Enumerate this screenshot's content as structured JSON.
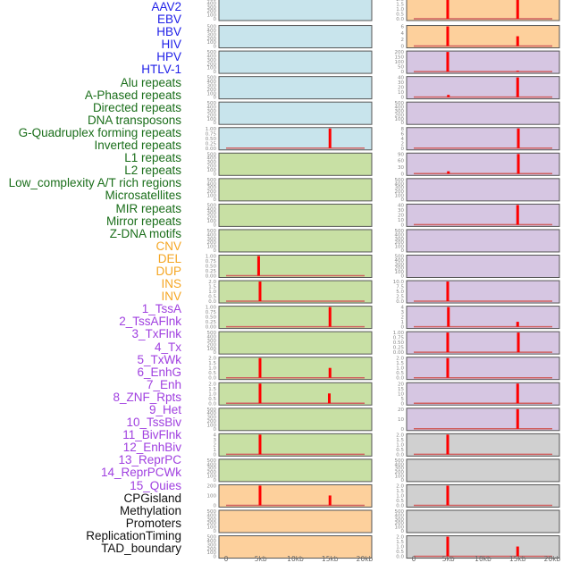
{
  "chart_data": {
    "type": "bar",
    "title": "",
    "xlabel": "",
    "x_ticks": [
      "0",
      "5kb",
      "10kb",
      "15kb",
      "20kb"
    ],
    "x_range_kb": [
      0,
      20
    ],
    "labels": [
      {
        "text": "AAV2",
        "color": "#2020e8"
      },
      {
        "text": "EBV",
        "color": "#2020e8"
      },
      {
        "text": "HBV",
        "color": "#2020e8"
      },
      {
        "text": "HIV",
        "color": "#2020e8"
      },
      {
        "text": "HPV",
        "color": "#2020e8"
      },
      {
        "text": "HTLV-1",
        "color": "#2020e8"
      },
      {
        "text": "Alu repeats",
        "color": "#1a6e1a"
      },
      {
        "text": "A-Phased repeats",
        "color": "#1a6e1a"
      },
      {
        "text": "Directed repeats",
        "color": "#1a6e1a"
      },
      {
        "text": "DNA transposons",
        "color": "#1a6e1a"
      },
      {
        "text": "G-Quadruplex forming repeats",
        "color": "#1a6e1a"
      },
      {
        "text": "Inverted repeats",
        "color": "#1a6e1a"
      },
      {
        "text": "L1 repeats",
        "color": "#1a6e1a"
      },
      {
        "text": "L2 repeats",
        "color": "#1a6e1a"
      },
      {
        "text": "Low_complexity A/T rich regions",
        "color": "#1a6e1a"
      },
      {
        "text": "Microsatellites",
        "color": "#1a6e1a"
      },
      {
        "text": "MIR repeats",
        "color": "#1a6e1a"
      },
      {
        "text": "Mirror repeats",
        "color": "#1a6e1a"
      },
      {
        "text": "Z-DNA motifs",
        "color": "#1a6e1a"
      },
      {
        "text": "CNV",
        "color": "#f5a623"
      },
      {
        "text": "DEL",
        "color": "#f5a623"
      },
      {
        "text": "DUP",
        "color": "#f5a623"
      },
      {
        "text": "INS",
        "color": "#f5a623"
      },
      {
        "text": "INV",
        "color": "#f5a623"
      },
      {
        "text": "1_TssA",
        "color": "#a040e0"
      },
      {
        "text": "2_TssAFlnk",
        "color": "#a040e0"
      },
      {
        "text": "3_TxFlnk",
        "color": "#a040e0"
      },
      {
        "text": "4_Tx",
        "color": "#a040e0"
      },
      {
        "text": "5_TxWk",
        "color": "#a040e0"
      },
      {
        "text": "6_EnhG",
        "color": "#a040e0"
      },
      {
        "text": "7_Enh",
        "color": "#a040e0"
      },
      {
        "text": "8_ZNF_Rpts",
        "color": "#a040e0"
      },
      {
        "text": "9_Het",
        "color": "#a040e0"
      },
      {
        "text": "10_TssBiv",
        "color": "#a040e0"
      },
      {
        "text": "11_BivFlnk",
        "color": "#a040e0"
      },
      {
        "text": "12_EnhBiv",
        "color": "#a040e0"
      },
      {
        "text": "13_ReprPC",
        "color": "#a040e0"
      },
      {
        "text": "14_ReprPCWk",
        "color": "#a040e0"
      },
      {
        "text": "15_Quies",
        "color": "#a040e0"
      },
      {
        "text": "CPGisland",
        "color": "#111111"
      },
      {
        "text": "Methylation",
        "color": "#111111"
      },
      {
        "text": "Promoters",
        "color": "#111111"
      },
      {
        "text": "ReplicationTiming",
        "color": "#111111"
      },
      {
        "text": "TAD_boundary",
        "color": "#111111"
      }
    ],
    "colors": {
      "virus_bg": "#c8e4ec",
      "repeat_bg": "#c8e0a4",
      "sv_bg": "#fdd09c",
      "chromhmm_bg": "#d6c6e2",
      "other_bg": "#d0d0d0",
      "bar": "#ff0000",
      "baseline": "#d06060"
    },
    "left_panels": [
      {
        "bg": "virus_bg",
        "yticks": [
          "0",
          "100",
          "200",
          "300",
          "400",
          "500"
        ],
        "ymax": 500,
        "bars": []
      },
      {
        "bg": "virus_bg",
        "yticks": [
          "0",
          "100",
          "200",
          "300",
          "400",
          "500"
        ],
        "ymax": 500,
        "bars": []
      },
      {
        "bg": "virus_bg",
        "yticks": [
          "0",
          "100",
          "200",
          "300",
          "400",
          "500"
        ],
        "ymax": 500,
        "bars": []
      },
      {
        "bg": "virus_bg",
        "yticks": [
          "0",
          "100",
          "200",
          "300",
          "400",
          "500"
        ],
        "ymax": 500,
        "bars": []
      },
      {
        "bg": "virus_bg",
        "yticks": [
          "0",
          "100",
          "200",
          "300",
          "400",
          "500"
        ],
        "ymax": 500,
        "bars": []
      },
      {
        "bg": "virus_bg",
        "yticks": [
          "0.00",
          "0.25",
          "0.50",
          "0.75",
          "1.00"
        ],
        "ymax": 1,
        "bars": [
          {
            "x": 15.0,
            "value": 1
          }
        ]
      },
      {
        "bg": "repeat_bg",
        "yticks": [
          "0",
          "100",
          "200",
          "300",
          "400",
          "500"
        ],
        "ymax": 500,
        "bars": []
      },
      {
        "bg": "repeat_bg",
        "yticks": [
          "0",
          "100",
          "200",
          "300",
          "400",
          "500"
        ],
        "ymax": 500,
        "bars": []
      },
      {
        "bg": "repeat_bg",
        "yticks": [
          "0",
          "100",
          "200",
          "300",
          "400",
          "500"
        ],
        "ymax": 500,
        "bars": []
      },
      {
        "bg": "repeat_bg",
        "yticks": [
          "0",
          "100",
          "200",
          "300",
          "400",
          "500"
        ],
        "ymax": 500,
        "bars": []
      },
      {
        "bg": "repeat_bg",
        "yticks": [
          "0.00",
          "0.25",
          "0.50",
          "0.75",
          "1.00"
        ],
        "ymax": 1,
        "bars": [
          {
            "x": 4.7,
            "value": 1
          }
        ]
      },
      {
        "bg": "repeat_bg",
        "yticks": [
          "0.0",
          "0.5",
          "1.0",
          "1.5",
          "2.0"
        ],
        "ymax": 2,
        "bars": [
          {
            "x": 4.9,
            "value": 2
          }
        ]
      },
      {
        "bg": "repeat_bg",
        "yticks": [
          "0.00",
          "0.25",
          "0.50",
          "0.75",
          "1.00"
        ],
        "ymax": 1,
        "bars": [
          {
            "x": 15.0,
            "value": 1
          }
        ]
      },
      {
        "bg": "repeat_bg",
        "yticks": [
          "0",
          "100",
          "200",
          "300",
          "400",
          "500"
        ],
        "ymax": 500,
        "bars": []
      },
      {
        "bg": "repeat_bg",
        "yticks": [
          "0.0",
          "0.5",
          "1.0",
          "1.5",
          "2.0"
        ],
        "ymax": 2,
        "bars": [
          {
            "x": 4.9,
            "value": 2
          },
          {
            "x": 15.0,
            "value": 1
          }
        ]
      },
      {
        "bg": "repeat_bg",
        "yticks": [
          "0.0",
          "0.5",
          "1.0",
          "1.5",
          "2.0"
        ],
        "ymax": 2,
        "bars": [
          {
            "x": 4.9,
            "value": 2
          },
          {
            "x": 14.9,
            "value": 1
          }
        ]
      },
      {
        "bg": "repeat_bg",
        "yticks": [
          "0",
          "100",
          "200",
          "300",
          "400",
          "500"
        ],
        "ymax": 500,
        "bars": []
      },
      {
        "bg": "repeat_bg",
        "yticks": [
          "0",
          "1",
          "2",
          "3",
          "4"
        ],
        "ymax": 4,
        "bars": [
          {
            "x": 4.9,
            "value": 4
          }
        ]
      },
      {
        "bg": "repeat_bg",
        "yticks": [
          "0",
          "100",
          "200",
          "300",
          "400",
          "500"
        ],
        "ymax": 500,
        "bars": []
      },
      {
        "bg": "sv_bg",
        "yticks": [
          "0",
          "100",
          "200"
        ],
        "ymax": 260,
        "bars": [
          {
            "x": 4.9,
            "value": 260
          },
          {
            "x": 15.0,
            "value": 130
          }
        ]
      },
      {
        "bg": "sv_bg",
        "yticks": [
          "0",
          "100",
          "200",
          "300",
          "400",
          "500"
        ],
        "ymax": 500,
        "bars": []
      },
      {
        "bg": "sv_bg",
        "yticks": [
          "0",
          "100",
          "200",
          "300",
          "400",
          "500"
        ],
        "ymax": 500,
        "bars": []
      }
    ],
    "right_panels": [
      {
        "bg": "sv_bg",
        "yticks": [
          "0.0",
          "0.5",
          "1.0",
          "1.5",
          "2.0"
        ],
        "ymax": 2,
        "bars": [
          {
            "x": 4.9,
            "value": 2
          },
          {
            "x": 15.0,
            "value": 2
          }
        ]
      },
      {
        "bg": "sv_bg",
        "yticks": [
          "0",
          "2",
          "4",
          "6"
        ],
        "ymax": 6,
        "bars": [
          {
            "x": 4.9,
            "value": 6
          },
          {
            "x": 15.0,
            "value": 3
          }
        ]
      },
      {
        "bg": "chromhmm_bg",
        "yticks": [
          "0",
          "50",
          "100",
          "150",
          "200"
        ],
        "ymax": 220,
        "bars": [
          {
            "x": 4.9,
            "value": 220
          },
          {
            "x": 15.0,
            "value": 10
          }
        ]
      },
      {
        "bg": "chromhmm_bg",
        "yticks": [
          "0",
          "10",
          "20",
          "30",
          "40"
        ],
        "ymax": 45,
        "bars": [
          {
            "x": 5.0,
            "value": 5
          },
          {
            "x": 15.0,
            "value": 45
          }
        ]
      },
      {
        "bg": "chromhmm_bg",
        "yticks": [
          "0",
          "100",
          "200",
          "300",
          "400",
          "500"
        ],
        "ymax": 500,
        "bars": []
      },
      {
        "bg": "chromhmm_bg",
        "yticks": [
          "0",
          "2",
          "4",
          "6",
          "8"
        ],
        "ymax": 8,
        "bars": [
          {
            "x": 15.1,
            "value": 8
          }
        ]
      },
      {
        "bg": "chromhmm_bg",
        "yticks": [
          "0",
          "30",
          "60",
          "90"
        ],
        "ymax": 100,
        "bars": [
          {
            "x": 5.0,
            "value": 12
          },
          {
            "x": 15.1,
            "value": 100
          }
        ]
      },
      {
        "bg": "chromhmm_bg",
        "yticks": [
          "0",
          "100",
          "200",
          "300",
          "400",
          "500"
        ],
        "ymax": 500,
        "bars": []
      },
      {
        "bg": "chromhmm_bg",
        "yticks": [
          "0",
          "10",
          "20",
          "30",
          "40"
        ],
        "ymax": 45,
        "bars": [
          {
            "x": 15.0,
            "value": 45
          }
        ]
      },
      {
        "bg": "chromhmm_bg",
        "yticks": [
          "0",
          "100",
          "200",
          "300",
          "400",
          "500"
        ],
        "ymax": 500,
        "bars": []
      },
      {
        "bg": "chromhmm_bg",
        "yticks": [
          "0",
          "100",
          "200",
          "300",
          "400",
          "500"
        ],
        "ymax": 500,
        "bars": []
      },
      {
        "bg": "chromhmm_bg",
        "yticks": [
          "0.0",
          "2.5",
          "5.0",
          "7.5",
          "10.0"
        ],
        "ymax": 10,
        "bars": [
          {
            "x": 4.9,
            "value": 10
          }
        ]
      },
      {
        "bg": "chromhmm_bg",
        "yticks": [
          "0",
          "1",
          "2",
          "3",
          "4"
        ],
        "ymax": 4,
        "bars": [
          {
            "x": 5.0,
            "value": 4
          },
          {
            "x": 15.0,
            "value": 1
          }
        ]
      },
      {
        "bg": "chromhmm_bg",
        "yticks": [
          "0.00",
          "0.25",
          "0.50",
          "0.75",
          "1.00"
        ],
        "ymax": 1,
        "bars": [
          {
            "x": 4.9,
            "value": 1
          },
          {
            "x": 15.1,
            "value": 1
          }
        ]
      },
      {
        "bg": "chromhmm_bg",
        "yticks": [
          "0.0",
          "0.5",
          "1.0",
          "1.5",
          "2.0"
        ],
        "ymax": 2,
        "bars": [
          {
            "x": 4.9,
            "value": 2
          }
        ]
      },
      {
        "bg": "chromhmm_bg",
        "yticks": [
          "0",
          "5",
          "10",
          "15",
          "20"
        ],
        "ymax": 20,
        "bars": [
          {
            "x": 15.0,
            "value": 20
          }
        ]
      },
      {
        "bg": "chromhmm_bg",
        "yticks": [
          "0",
          "10",
          "20"
        ],
        "ymax": 28,
        "bars": [
          {
            "x": 15.0,
            "value": 28
          }
        ]
      },
      {
        "bg": "other_bg",
        "yticks": [
          "0.0",
          "0.5",
          "1.0",
          "1.5",
          "2.0"
        ],
        "ymax": 2,
        "bars": [
          {
            "x": 4.9,
            "value": 2
          }
        ]
      },
      {
        "bg": "other_bg",
        "yticks": [
          "0",
          "100",
          "200",
          "300",
          "400",
          "500"
        ],
        "ymax": 500,
        "bars": []
      },
      {
        "bg": "other_bg",
        "yticks": [
          "0.0",
          "0.5",
          "1.0",
          "1.5",
          "2.0"
        ],
        "ymax": 2,
        "bars": [
          {
            "x": 4.9,
            "value": 2
          }
        ]
      },
      {
        "bg": "other_bg",
        "yticks": [
          "0",
          "100",
          "200",
          "300",
          "400",
          "500"
        ],
        "ymax": 500,
        "bars": []
      },
      {
        "bg": "other_bg",
        "yticks": [
          "0.0",
          "0.5",
          "1.0",
          "1.5",
          "2.0"
        ],
        "ymax": 2,
        "bars": [
          {
            "x": 4.9,
            "value": 2
          },
          {
            "x": 15.0,
            "value": 1
          }
        ]
      }
    ]
  }
}
